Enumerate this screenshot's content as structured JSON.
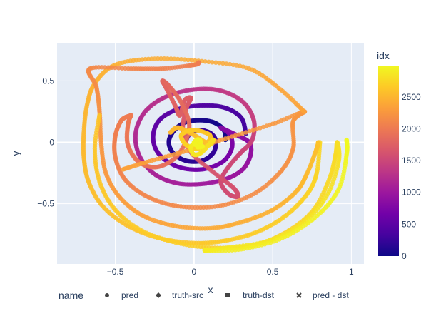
{
  "chart_data": {
    "type": "scatter",
    "xlabel": "x",
    "ylabel": "y",
    "xlim": [
      -0.87,
      1.08
    ],
    "ylim": [
      -0.99,
      0.81
    ],
    "x_ticks": [
      -0.5,
      0,
      0.5,
      1
    ],
    "x_tick_labels": [
      "−0.5",
      "0",
      "0.5",
      "1"
    ],
    "y_ticks": [
      -0.5,
      0,
      0.5
    ],
    "y_tick_labels": [
      "−0.5",
      "0",
      "0.5"
    ],
    "grid": true,
    "plot_background": "#e5ecf6",
    "colorbar": {
      "title": "idx",
      "range": [
        0,
        2990
      ],
      "ticks": [
        0,
        500,
        1000,
        1500,
        2000,
        2500
      ],
      "colorscale": [
        "#0d0887",
        "#46039f",
        "#7201a8",
        "#9c179e",
        "#bd3786",
        "#d8576b",
        "#ed7953",
        "#fb9f3a",
        "#fdca26",
        "#f0f921"
      ]
    },
    "legend": {
      "title": "name",
      "placement": "bottom",
      "entries": [
        {
          "label": "pred",
          "symbol": "circle"
        },
        {
          "label": "truth-src",
          "symbol": "diamond"
        },
        {
          "label": "truth-dst",
          "symbol": "square"
        },
        {
          "label": "pred - dst",
          "symbol": "x"
        }
      ]
    },
    "series": [
      {
        "idx_range": [
          0,
          300
        ],
        "points": [
          [
            0.2,
            0.02
          ],
          [
            0.19,
            0.1
          ],
          [
            0.13,
            0.16
          ],
          [
            0.04,
            0.18
          ],
          [
            -0.06,
            0.16
          ],
          [
            -0.13,
            0.09
          ],
          [
            -0.16,
            0.0
          ],
          [
            -0.13,
            -0.09
          ],
          [
            -0.05,
            -0.15
          ],
          [
            0.05,
            -0.15
          ],
          [
            0.12,
            -0.09
          ],
          [
            0.14,
            0.0
          ],
          [
            0.11,
            0.07
          ],
          [
            0.04,
            0.1
          ],
          [
            -0.02,
            0.08
          ],
          [
            -0.05,
            0.02
          ]
        ]
      },
      {
        "idx_range": [
          300,
          800
        ],
        "points": [
          [
            0.33,
            0.07
          ],
          [
            0.3,
            0.2
          ],
          [
            0.2,
            0.28
          ],
          [
            0.06,
            0.3
          ],
          [
            -0.1,
            0.27
          ],
          [
            -0.22,
            0.18
          ],
          [
            -0.26,
            0.04
          ],
          [
            -0.22,
            -0.1
          ],
          [
            -0.1,
            -0.2
          ],
          [
            0.05,
            -0.22
          ],
          [
            0.18,
            -0.16
          ],
          [
            0.24,
            -0.05
          ],
          [
            0.23,
            0.06
          ],
          [
            0.17,
            0.12
          ]
        ]
      },
      {
        "idx_range": [
          800,
          1500
        ],
        "points": [
          [
            0.17,
            0.12
          ],
          [
            0.27,
            0.06
          ],
          [
            0.35,
            0.0
          ],
          [
            0.36,
            -0.1
          ],
          [
            0.31,
            -0.22
          ],
          [
            0.2,
            -0.3
          ],
          [
            0.04,
            -0.34
          ],
          [
            -0.12,
            -0.33
          ],
          [
            -0.26,
            -0.25
          ],
          [
            -0.35,
            -0.1
          ],
          [
            -0.37,
            0.08
          ],
          [
            -0.31,
            0.25
          ],
          [
            -0.18,
            0.37
          ],
          [
            0.0,
            0.43
          ],
          [
            0.17,
            0.42
          ],
          [
            0.31,
            0.33
          ],
          [
            0.38,
            0.18
          ],
          [
            0.37,
            0.02
          ],
          [
            0.3,
            -0.08
          ]
        ]
      },
      {
        "idx_range": [
          1500,
          2000
        ],
        "points": [
          [
            0.3,
            -0.08
          ],
          [
            0.22,
            -0.2
          ],
          [
            0.17,
            -0.32
          ],
          [
            0.22,
            -0.42
          ],
          [
            0.28,
            -0.44
          ],
          [
            0.25,
            -0.37
          ],
          [
            0.12,
            -0.24
          ],
          [
            -0.02,
            -0.08
          ],
          [
            -0.07,
            0.1
          ],
          [
            -0.05,
            0.27
          ],
          [
            -0.02,
            0.36
          ],
          [
            -0.06,
            0.34
          ],
          [
            -0.09,
            0.22
          ],
          [
            -0.12,
            0.3
          ],
          [
            -0.18,
            0.45
          ],
          [
            -0.2,
            0.5
          ],
          [
            -0.16,
            0.46
          ],
          [
            -0.08,
            0.32
          ],
          [
            -0.03,
            0.12
          ],
          [
            -0.1,
            -0.1
          ],
          [
            -0.23,
            -0.2
          ],
          [
            -0.35,
            -0.16
          ],
          [
            -0.42,
            -0.02
          ],
          [
            -0.42,
            0.14
          ],
          [
            -0.4,
            0.22
          ]
        ]
      },
      {
        "idx_range": [
          2000,
          2350
        ],
        "points": [
          [
            -0.4,
            0.22
          ],
          [
            -0.46,
            0.18
          ],
          [
            -0.5,
            0.05
          ],
          [
            -0.5,
            -0.12
          ],
          [
            -0.44,
            -0.3
          ],
          [
            -0.3,
            -0.44
          ],
          [
            -0.1,
            -0.52
          ],
          [
            0.15,
            -0.52
          ],
          [
            0.38,
            -0.42
          ],
          [
            0.55,
            -0.24
          ],
          [
            0.63,
            -0.05
          ],
          [
            0.63,
            0.17
          ],
          [
            0.7,
            0.25
          ],
          [
            0.5,
            0.15
          ],
          [
            0.2,
            0.03
          ],
          [
            -0.05,
            -0.07
          ],
          [
            -0.3,
            -0.16
          ],
          [
            -0.45,
            -0.22
          ]
        ]
      },
      {
        "idx_range": [
          2350,
          2750
        ],
        "points": [
          [
            0.7,
            0.25
          ],
          [
            0.55,
            0.43
          ],
          [
            0.35,
            0.6
          ],
          [
            0.05,
            0.66
          ],
          [
            -0.25,
            0.68
          ],
          [
            -0.5,
            0.63
          ],
          [
            -0.63,
            0.48
          ],
          [
            -0.68,
            0.3
          ],
          [
            -0.7,
            0.08
          ],
          [
            -0.7,
            -0.12
          ],
          [
            -0.67,
            -0.32
          ],
          [
            -0.58,
            -0.52
          ],
          [
            -0.42,
            -0.68
          ],
          [
            -0.22,
            -0.78
          ],
          [
            0.0,
            -0.82
          ],
          [
            0.2,
            -0.8
          ],
          [
            0.4,
            -0.73
          ],
          [
            0.58,
            -0.6
          ],
          [
            0.72,
            -0.42
          ],
          [
            0.78,
            -0.25
          ],
          [
            0.8,
            0.0
          ]
        ]
      },
      {
        "idx_range": [
          2000,
          2600
        ],
        "points": [
          [
            0.03,
            0.65
          ],
          [
            0.0,
            0.63
          ],
          [
            -0.2,
            0.6
          ],
          [
            -0.4,
            0.6
          ],
          [
            -0.66,
            0.6
          ],
          [
            -0.62,
            0.45
          ],
          [
            -0.6,
            0.25
          ],
          [
            -0.59,
            0.0
          ],
          [
            -0.56,
            -0.25
          ],
          [
            -0.47,
            -0.45
          ],
          [
            -0.32,
            -0.6
          ],
          [
            -0.12,
            -0.68
          ],
          [
            0.1,
            -0.7
          ],
          [
            0.3,
            -0.65
          ],
          [
            0.5,
            -0.55
          ],
          [
            0.65,
            -0.4
          ],
          [
            0.72,
            -0.25
          ],
          [
            0.78,
            -0.05
          ],
          [
            0.79,
            0.0
          ]
        ]
      },
      {
        "idx_range": [
          2600,
          2990
        ],
        "points": [
          [
            -0.6,
            0.22
          ],
          [
            -0.63,
            -0.05
          ],
          [
            -0.6,
            -0.32
          ],
          [
            -0.5,
            -0.55
          ],
          [
            -0.33,
            -0.72
          ],
          [
            -0.1,
            -0.82
          ],
          [
            0.15,
            -0.86
          ],
          [
            0.4,
            -0.83
          ],
          [
            0.6,
            -0.72
          ],
          [
            0.76,
            -0.55
          ],
          [
            0.86,
            -0.3
          ],
          [
            0.9,
            -0.1
          ],
          [
            0.91,
            0.0
          ],
          [
            0.92,
            -0.15
          ],
          [
            0.85,
            -0.42
          ],
          [
            0.7,
            -0.65
          ],
          [
            0.48,
            -0.8
          ],
          [
            0.2,
            -0.86
          ],
          [
            0.07,
            -0.88
          ],
          [
            0.3,
            -0.87
          ],
          [
            0.56,
            -0.78
          ],
          [
            0.78,
            -0.6
          ],
          [
            0.92,
            -0.38
          ],
          [
            0.97,
            -0.1
          ],
          [
            0.97,
            0.02
          ]
        ]
      },
      {
        "idx_range": [
          2500,
          2990
        ],
        "points": [
          [
            -0.15,
            0.08
          ],
          [
            -0.1,
            0.12
          ],
          [
            0.0,
            0.06
          ],
          [
            0.08,
            0.0
          ],
          [
            0.1,
            0.06
          ],
          [
            0.0,
            0.1
          ],
          [
            -0.08,
            0.06
          ],
          [
            -0.05,
            -0.02
          ],
          [
            0.02,
            -0.05
          ],
          [
            0.1,
            -0.02
          ],
          [
            0.12,
            0.02
          ],
          [
            0.05,
            -0.08
          ],
          [
            0.0,
            -0.1
          ],
          [
            -0.02,
            -0.04
          ],
          [
            0.02,
            0.0
          ],
          [
            0.04,
            -0.04
          ],
          [
            0.02,
            -0.02
          ],
          [
            0.0,
            0.0
          ]
        ]
      }
    ]
  }
}
